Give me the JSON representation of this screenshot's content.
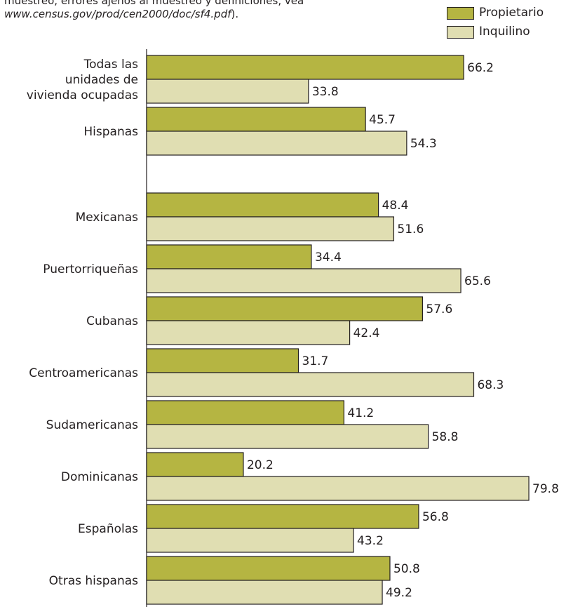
{
  "note": {
    "line1": "muestreo, errores ajenos al muestreo y definiciones, vea",
    "link": "www.census.gov/prod/cen2000/doc/sf4.pdf",
    "link_suffix": ")."
  },
  "colors": {
    "owner": "#b5b542",
    "renter": "#e0deb2",
    "outline": "#231f20"
  },
  "chart_data": {
    "type": "bar",
    "orientation": "horizontal",
    "categories": [
      [
        "Todas las",
        "unidades de",
        "vivienda ocupadas"
      ],
      [
        "Hispanas"
      ],
      [
        "Mexicanas"
      ],
      [
        "Puertorriqueñas"
      ],
      [
        "Cubanas"
      ],
      [
        "Centroamericanas"
      ],
      [
        "Sudamericanas"
      ],
      [
        "Dominicanas"
      ],
      [
        "Españolas"
      ],
      [
        "Otras hispanas"
      ]
    ],
    "series": [
      {
        "name": "Propietario",
        "values": [
          66.2,
          45.7,
          48.4,
          34.4,
          57.6,
          31.7,
          41.2,
          20.2,
          56.8,
          50.8
        ],
        "labels": [
          "66.2",
          "45.7",
          "48.4",
          "34.4",
          "57.6",
          "31.7",
          "41.2",
          "20.2",
          "56.8",
          "50.8"
        ]
      },
      {
        "name": "Inquilino",
        "values": [
          33.8,
          54.3,
          51.6,
          65.6,
          42.4,
          68.3,
          58.8,
          79.8,
          43.2,
          49.2
        ],
        "labels": [
          "33.8",
          "54.3",
          "51.6",
          "65.6",
          "42.4",
          "68.3",
          "58.8",
          "79.8",
          "43.2",
          "49.2"
        ]
      }
    ],
    "xlim": [
      0,
      100
    ],
    "legend": "top-right",
    "grid": false
  }
}
